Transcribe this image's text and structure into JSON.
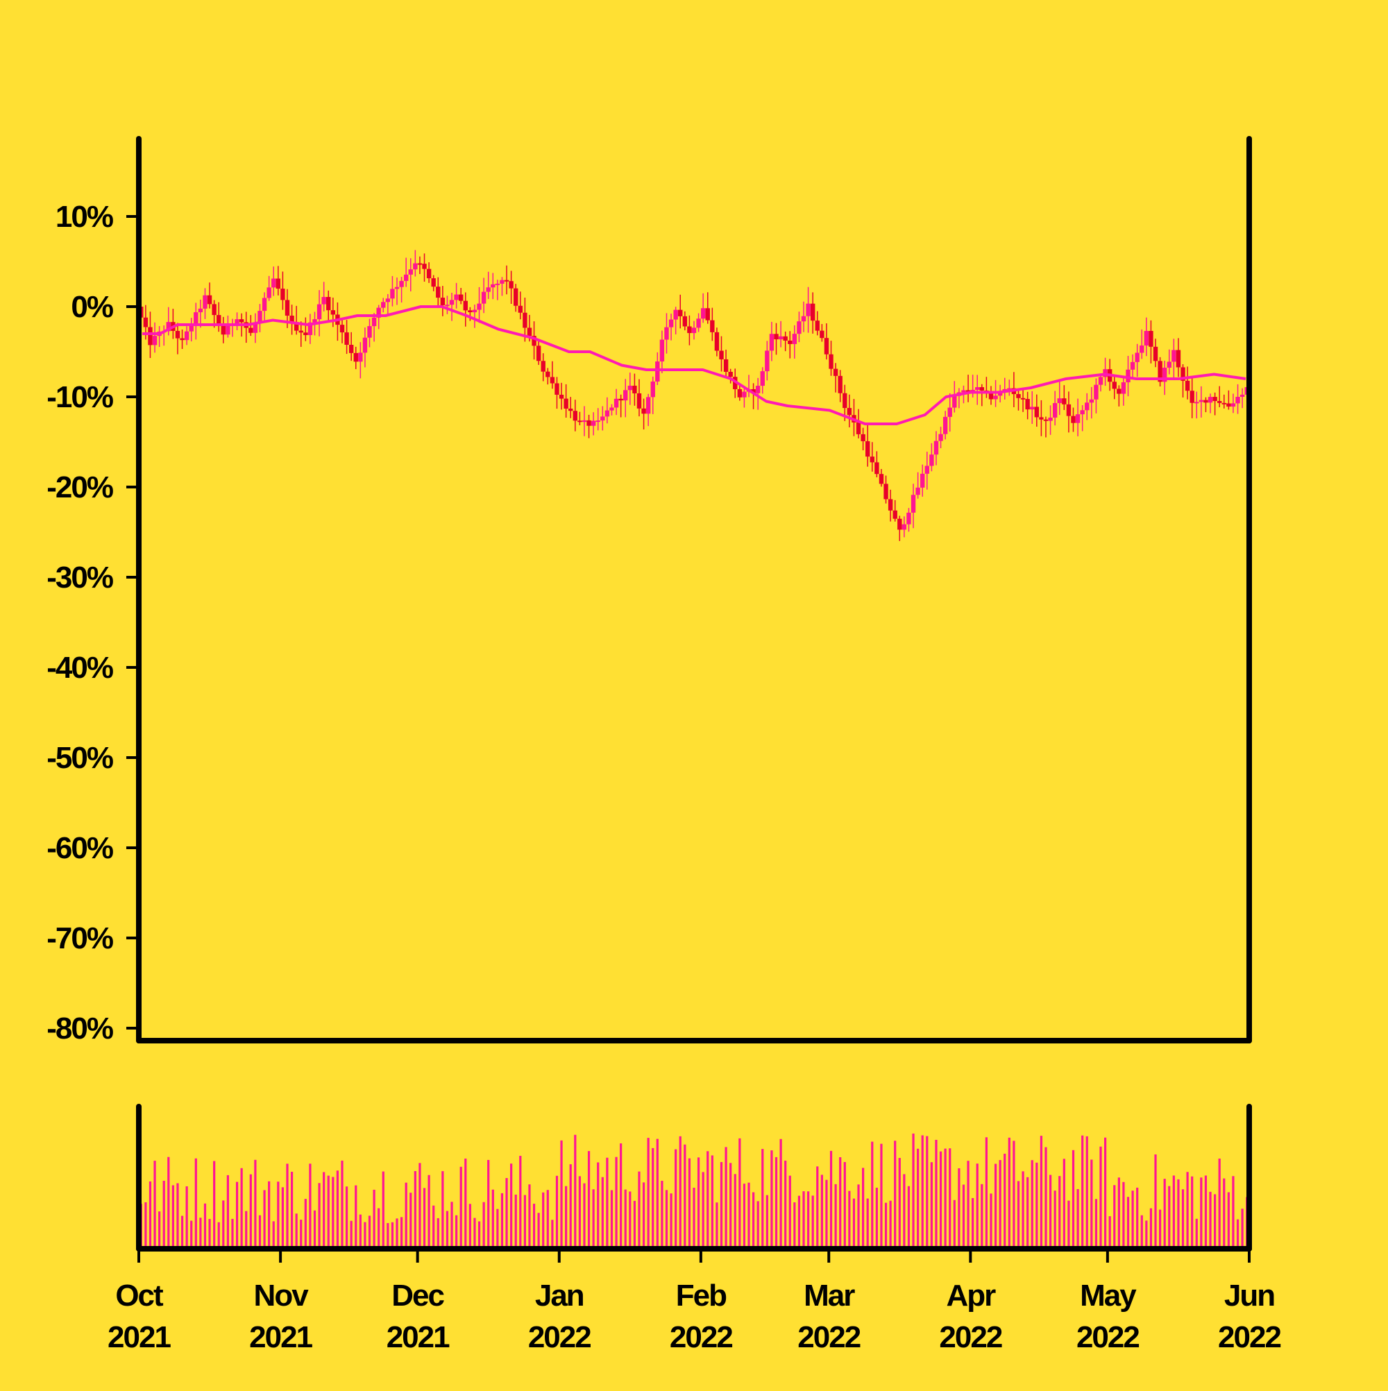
{
  "colors": {
    "background": "#FFE033",
    "axis": "#000000",
    "candle_down": "#E8002A",
    "candle_up": "#FF1493",
    "moving_average": "#FF1AB3",
    "volume": "#FF1493"
  },
  "chart_data": {
    "type": "candlestick",
    "title": "",
    "xlabel": "",
    "ylabel": "",
    "y_ticks": [
      "10%",
      "0%",
      "-10%",
      "-20%",
      "-30%",
      "-40%",
      "-50%",
      "-60%",
      "-70%",
      "-80%"
    ],
    "y_tick_values": [
      10,
      0,
      -10,
      -20,
      -30,
      -40,
      -50,
      -60,
      -70,
      -80
    ],
    "ylim": [
      -80,
      10
    ],
    "x_ticks": [
      {
        "month": "Oct",
        "year": "2021",
        "date": "2021-10-01"
      },
      {
        "month": "Nov",
        "year": "2021",
        "date": "2021-11-01"
      },
      {
        "month": "Dec",
        "year": "2021",
        "date": "2021-12-01"
      },
      {
        "month": "Jan",
        "year": "2022",
        "date": "2022-01-01"
      },
      {
        "month": "Feb",
        "year": "2022",
        "date": "2022-02-01"
      },
      {
        "month": "Mar",
        "year": "2022",
        "date": "2022-03-01"
      },
      {
        "month": "Apr",
        "year": "2022",
        "date": "2022-04-01"
      },
      {
        "month": "May",
        "year": "2022",
        "date": "2022-05-01"
      },
      {
        "month": "Jun",
        "year": "2022",
        "date": "2022-06-01"
      }
    ],
    "xlim": [
      "2021-10-01",
      "2022-06-01"
    ],
    "price_path_percent": [
      {
        "date": "2021-10-01",
        "value": 0
      },
      {
        "date": "2021-10-04",
        "value": -4
      },
      {
        "date": "2021-10-08",
        "value": -2
      },
      {
        "date": "2021-10-11",
        "value": -4
      },
      {
        "date": "2021-10-16",
        "value": 1
      },
      {
        "date": "2021-10-20",
        "value": -3
      },
      {
        "date": "2021-10-23",
        "value": -1
      },
      {
        "date": "2021-10-26",
        "value": -3
      },
      {
        "date": "2021-10-31",
        "value": 3
      },
      {
        "date": "2021-11-04",
        "value": -2
      },
      {
        "date": "2021-11-07",
        "value": -3
      },
      {
        "date": "2021-11-11",
        "value": 1
      },
      {
        "date": "2021-11-14",
        "value": -2
      },
      {
        "date": "2021-11-18",
        "value": -6
      },
      {
        "date": "2021-11-23",
        "value": 0
      },
      {
        "date": "2021-11-28",
        "value": 3
      },
      {
        "date": "2021-12-01",
        "value": 5
      },
      {
        "date": "2021-12-03",
        "value": 4
      },
      {
        "date": "2021-12-07",
        "value": 0
      },
      {
        "date": "2021-12-10",
        "value": 1
      },
      {
        "date": "2021-12-13",
        "value": -1
      },
      {
        "date": "2021-12-17",
        "value": 2
      },
      {
        "date": "2021-12-21",
        "value": 3
      },
      {
        "date": "2021-12-24",
        "value": -1
      },
      {
        "date": "2021-12-29",
        "value": -7
      },
      {
        "date": "2022-01-03",
        "value": -11
      },
      {
        "date": "2022-01-06",
        "value": -13
      },
      {
        "date": "2022-01-10",
        "value": -13
      },
      {
        "date": "2022-01-13",
        "value": -11
      },
      {
        "date": "2022-01-17",
        "value": -9
      },
      {
        "date": "2022-01-20",
        "value": -12
      },
      {
        "date": "2022-01-24",
        "value": -4
      },
      {
        "date": "2022-01-27",
        "value": 0
      },
      {
        "date": "2022-01-30",
        "value": -3
      },
      {
        "date": "2022-02-02",
        "value": 0
      },
      {
        "date": "2022-02-06",
        "value": -6
      },
      {
        "date": "2022-02-10",
        "value": -10
      },
      {
        "date": "2022-02-14",
        "value": -9
      },
      {
        "date": "2022-02-17",
        "value": -3
      },
      {
        "date": "2022-02-21",
        "value": -4
      },
      {
        "date": "2022-02-25",
        "value": 0
      },
      {
        "date": "2022-03-01",
        "value": -5
      },
      {
        "date": "2022-03-05",
        "value": -11
      },
      {
        "date": "2022-03-09",
        "value": -15
      },
      {
        "date": "2022-03-13",
        "value": -20
      },
      {
        "date": "2022-03-17",
        "value": -25
      },
      {
        "date": "2022-03-21",
        "value": -20
      },
      {
        "date": "2022-03-25",
        "value": -15
      },
      {
        "date": "2022-03-29",
        "value": -10
      },
      {
        "date": "2022-04-02",
        "value": -9
      },
      {
        "date": "2022-04-06",
        "value": -10
      },
      {
        "date": "2022-04-10",
        "value": -9
      },
      {
        "date": "2022-04-14",
        "value": -11
      },
      {
        "date": "2022-04-18",
        "value": -13
      },
      {
        "date": "2022-04-21",
        "value": -10
      },
      {
        "date": "2022-04-24",
        "value": -13
      },
      {
        "date": "2022-04-28",
        "value": -10
      },
      {
        "date": "2022-05-01",
        "value": -7
      },
      {
        "date": "2022-05-04",
        "value": -10
      },
      {
        "date": "2022-05-07",
        "value": -6
      },
      {
        "date": "2022-05-10",
        "value": -3
      },
      {
        "date": "2022-05-13",
        "value": -8
      },
      {
        "date": "2022-05-16",
        "value": -5
      },
      {
        "date": "2022-05-20",
        "value": -11
      },
      {
        "date": "2022-05-24",
        "value": -10
      },
      {
        "date": "2022-05-28",
        "value": -11
      },
      {
        "date": "2022-06-01",
        "value": -9
      }
    ],
    "moving_average_percent": [
      {
        "date": "2021-10-01",
        "value": -3
      },
      {
        "date": "2021-10-06",
        "value": -3
      },
      {
        "date": "2021-10-11",
        "value": -2
      },
      {
        "date": "2021-10-21",
        "value": -2
      },
      {
        "date": "2021-10-31",
        "value": -2
      },
      {
        "date": "2021-11-07",
        "value": -1.5
      },
      {
        "date": "2021-11-17",
        "value": -2
      },
      {
        "date": "2021-11-25",
        "value": -1.5
      },
      {
        "date": "2021-12-01",
        "value": -1
      },
      {
        "date": "2021-12-09",
        "value": -1
      },
      {
        "date": "2021-12-19",
        "value": 0
      },
      {
        "date": "2021-12-25",
        "value": 0
      },
      {
        "date": "2022-01-01",
        "value": -1
      },
      {
        "date": "2022-01-10",
        "value": -2.5
      },
      {
        "date": "2022-01-20",
        "value": -3.5
      },
      {
        "date": "2022-01-30",
        "value": -5
      },
      {
        "date": "2022-02-05",
        "value": -5
      },
      {
        "date": "2022-02-14",
        "value": -6.5
      },
      {
        "date": "2022-02-21",
        "value": -7
      },
      {
        "date": "2022-03-01",
        "value": -7
      },
      {
        "date": "2022-03-09",
        "value": -7
      },
      {
        "date": "2022-03-17",
        "value": -8
      },
      {
        "date": "2022-03-27",
        "value": -10.5
      },
      {
        "date": "2022-04-02",
        "value": -11
      },
      {
        "date": "2022-04-14",
        "value": -11.5
      },
      {
        "date": "2022-04-24",
        "value": -13
      },
      {
        "date": "2022-05-03",
        "value": -13
      },
      {
        "date": "2022-05-11",
        "value": -12
      },
      {
        "date": "2022-05-17",
        "value": -10
      },
      {
        "date": "2022-05-24",
        "value": -9.5
      },
      {
        "date": "2022-06-01",
        "value": -9.5
      },
      {
        "date": "2022-06-10",
        "value": -9
      },
      {
        "date": "2022-06-20",
        "value": -8
      },
      {
        "date": "2022-07-01",
        "value": -7.5
      },
      {
        "date": "2022-07-10",
        "value": -8
      },
      {
        "date": "2022-07-22",
        "value": -8
      },
      {
        "date": "2022-08-01",
        "value": -7.5
      },
      {
        "date": "2022-08-10",
        "value": -8
      }
    ],
    "volume_panel": {
      "has_axis_labels": false,
      "description_of_scale": "relative volume 0 to 1"
    }
  }
}
